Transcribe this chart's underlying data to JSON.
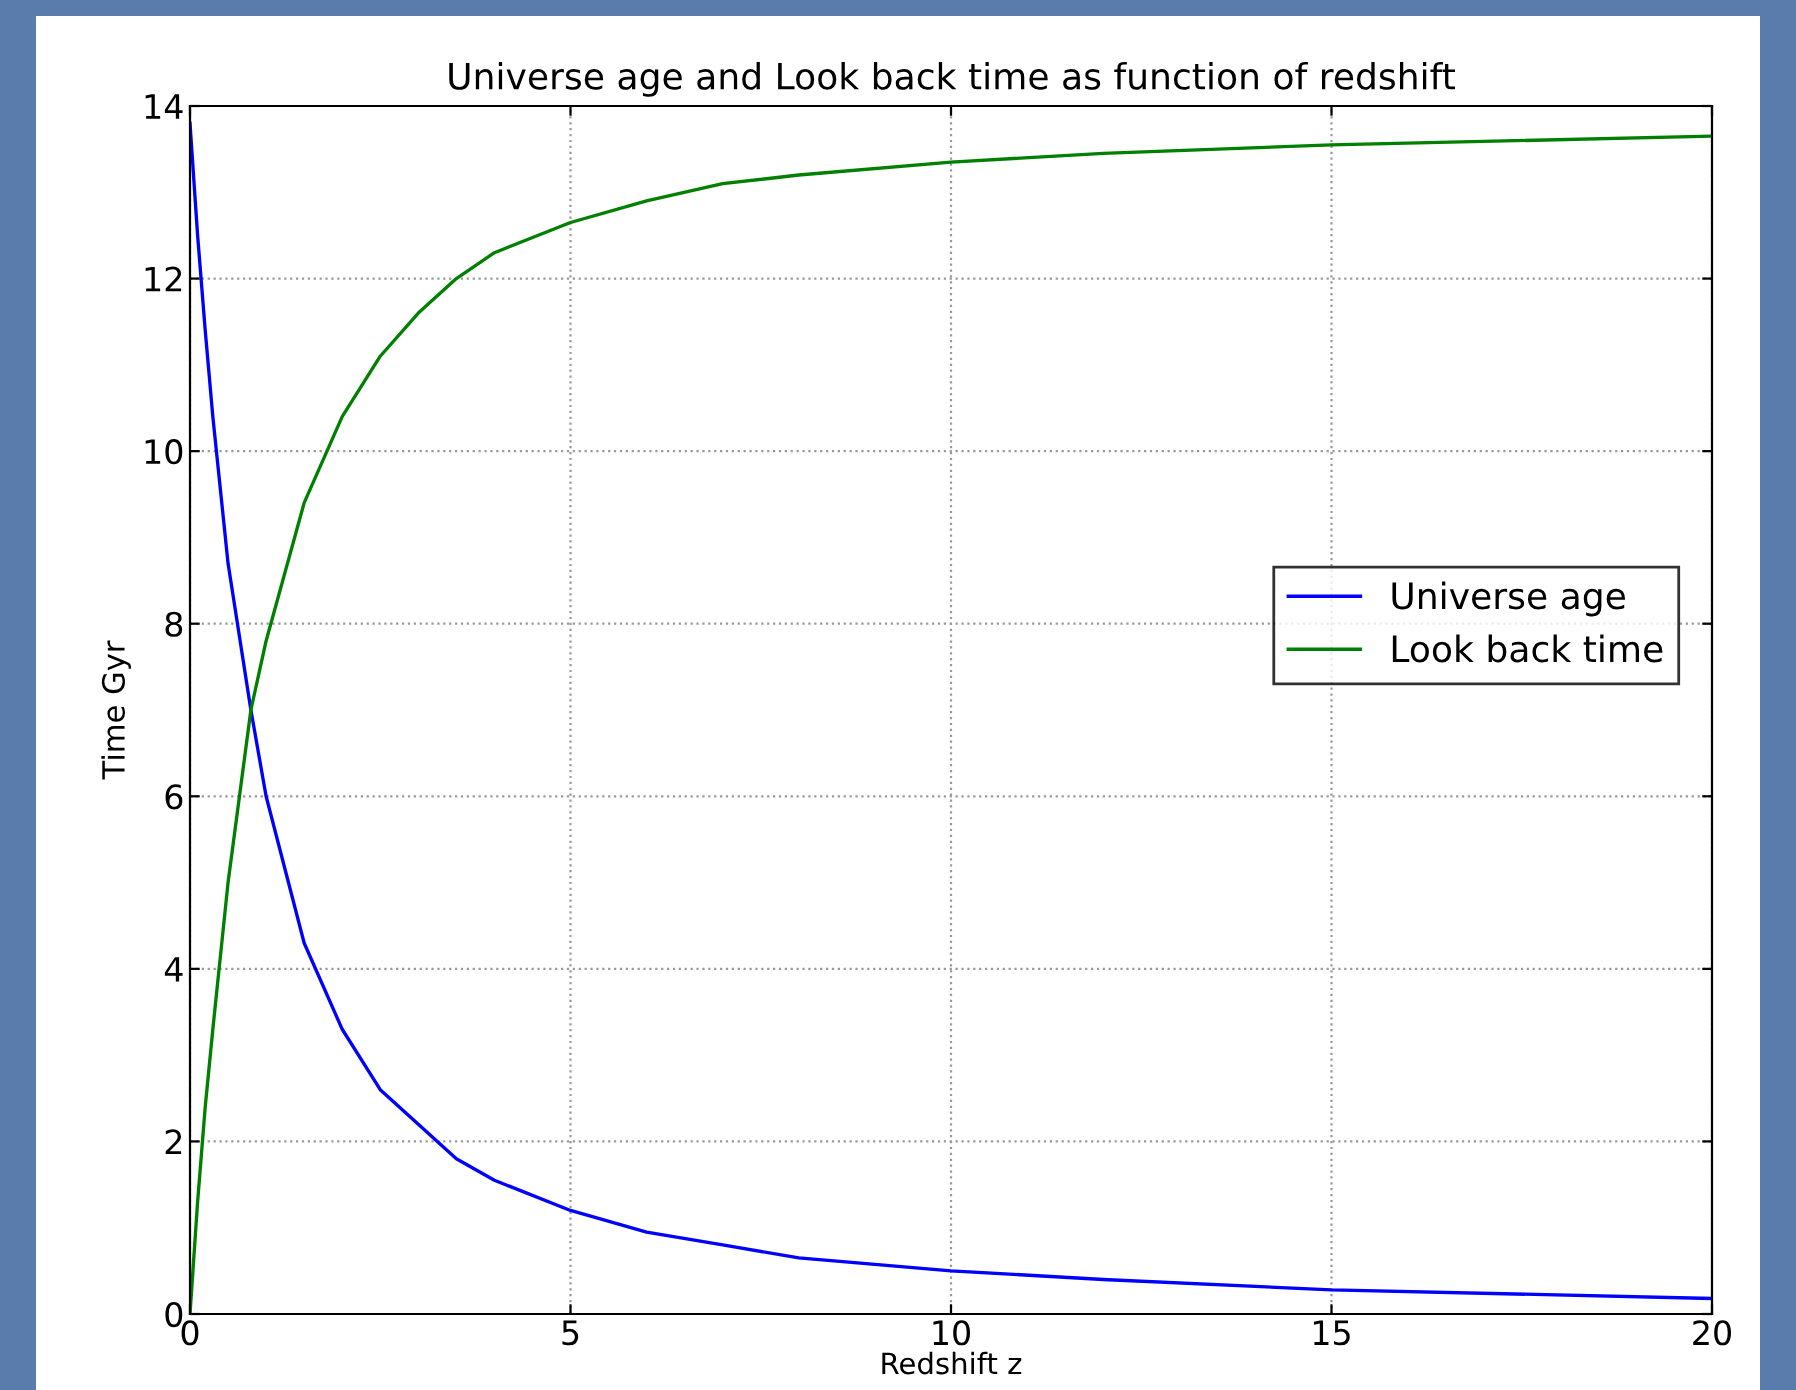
{
  "chart_data": {
    "type": "line",
    "title": "Universe age and Look back time as function of redshift",
    "xlabel": "Redshift z",
    "ylabel": "Time Gyr",
    "x": [
      0,
      0.1,
      0.2,
      0.3,
      0.5,
      0.8,
      1,
      1.5,
      2,
      2.5,
      3,
      3.5,
      4,
      5,
      6,
      7,
      8,
      10,
      12,
      15,
      20
    ],
    "series": [
      {
        "name": "Universe age",
        "color": "#0000ff",
        "values": [
          13.8,
          12.5,
          11.4,
          10.4,
          8.7,
          7.0,
          6.0,
          4.3,
          3.3,
          2.6,
          2.2,
          1.8,
          1.55,
          1.2,
          0.95,
          0.8,
          0.65,
          0.5,
          0.4,
          0.28,
          0.18
        ]
      },
      {
        "name": "Look back time",
        "color": "#008000",
        "values": [
          0,
          1.3,
          2.4,
          3.3,
          5.0,
          7.0,
          7.8,
          9.4,
          10.4,
          11.1,
          11.6,
          12.0,
          12.3,
          12.65,
          12.9,
          13.1,
          13.2,
          13.35,
          13.45,
          13.55,
          13.65
        ]
      }
    ],
    "xlim": [
      0,
      20
    ],
    "xticks": [
      0,
      5,
      10,
      15,
      20
    ],
    "ylim": [
      0,
      14
    ],
    "yticks": [
      0,
      2,
      4,
      6,
      8,
      10,
      12,
      14
    ],
    "grid": true,
    "legend": "right",
    "marker": "none",
    "line_style": "solid"
  }
}
